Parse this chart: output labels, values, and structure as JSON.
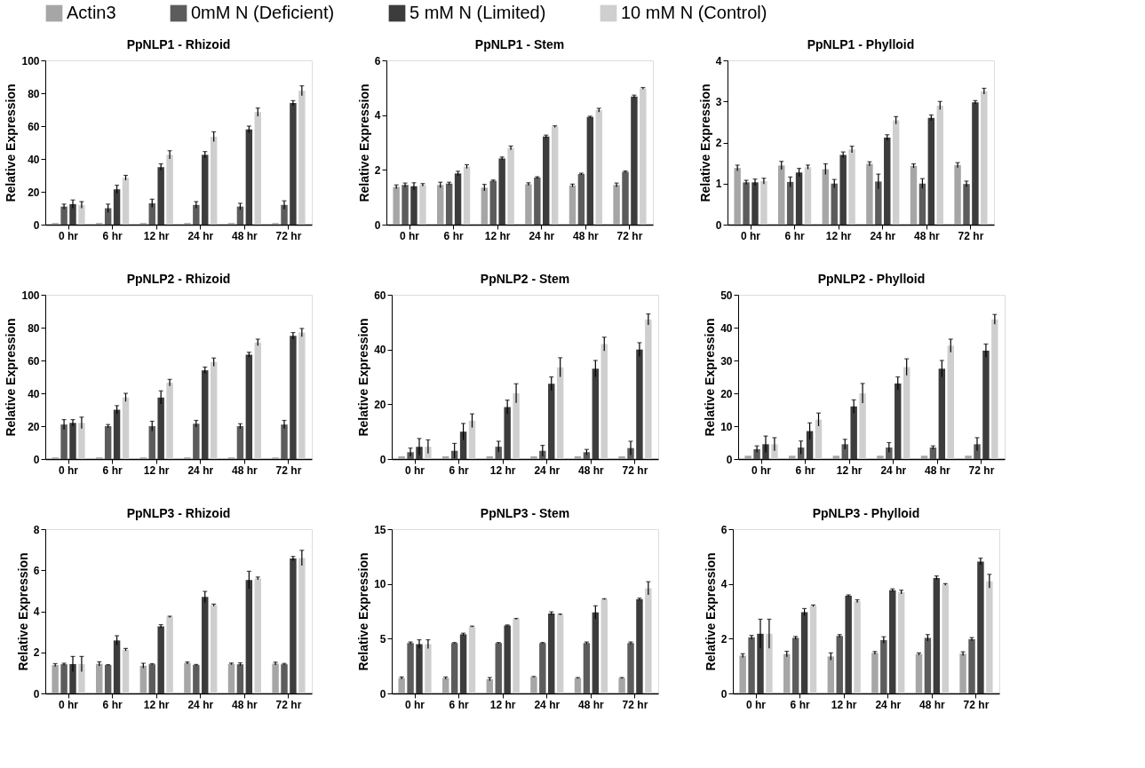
{
  "chart_data": [
    {
      "type": "bar",
      "title": "PpNLP1 - Rhizoid",
      "ylabel": "Relative Expression",
      "categories": [
        "0 hr",
        "6 hr",
        "12 hr",
        "24 hr",
        "48 hr",
        "72 hr"
      ],
      "ylim": [
        0,
        100
      ],
      "yticks": [
        0,
        20,
        40,
        60,
        80,
        100
      ],
      "grid": false,
      "legend": "top",
      "series": [
        {
          "name": "Actin3",
          "color": "#a6a6a6",
          "values": [
            1,
            1,
            1,
            1,
            1,
            1
          ]
        },
        {
          "name": "0mM N (Deficient)",
          "color": "#5c5c5c",
          "values": [
            11,
            10,
            13,
            12,
            11,
            12
          ],
          "errors": [
            1.5,
            2.5,
            2.5,
            2,
            2,
            2.5
          ]
        },
        {
          "name": "5 mM N (Limited)",
          "color": "#3c3c3c",
          "values": [
            12.5,
            21.5,
            35,
            42.5,
            58,
            74
          ],
          "errors": [
            2.5,
            2.5,
            2,
            2,
            2,
            1.5
          ]
        },
        {
          "name": "10 mM N (Control)",
          "color": "#cfcfcf",
          "values": [
            12,
            28.5,
            42.5,
            53.5,
            68.5,
            81.5
          ],
          "errors": [
            2,
            1.5,
            2.5,
            3,
            2.5,
            3
          ]
        }
      ]
    },
    {
      "type": "bar",
      "title": "PpNLP1 - Stem",
      "ylabel": "Relative Expression",
      "categories": [
        "0 hr",
        "6 hr",
        "12 hr",
        "24 hr",
        "48 hr",
        "72 hr"
      ],
      "ylim": [
        0,
        6
      ],
      "yticks": [
        0,
        2,
        4,
        6
      ],
      "grid": false,
      "legend": "top",
      "series": [
        {
          "name": "Actin3",
          "color": "#a6a6a6",
          "values": [
            1.38,
            1.45,
            1.35,
            1.48,
            1.43,
            1.45
          ],
          "errors": [
            0.07,
            0.1,
            0.12,
            0.05,
            0.05,
            0.07
          ]
        },
        {
          "name": "0mM N (Deficient)",
          "color": "#5c5c5c",
          "values": [
            1.45,
            1.5,
            1.6,
            1.72,
            1.85,
            1.93
          ],
          "errors": [
            0.07,
            0.05,
            0.03,
            0.03,
            0.03,
            0.03
          ]
        },
        {
          "name": "5 mM N (Limited)",
          "color": "#3c3c3c",
          "values": [
            1.4,
            1.87,
            2.42,
            3.22,
            3.93,
            4.68
          ],
          "errors": [
            0.13,
            0.08,
            0.05,
            0.05,
            0.03,
            0.05
          ]
        },
        {
          "name": "10 mM N (Control)",
          "color": "#cfcfcf",
          "values": [
            1.45,
            2.12,
            2.8,
            3.58,
            4.18,
            4.98
          ],
          "errors": [
            0.05,
            0.07,
            0.07,
            0.03,
            0.07,
            0.03
          ]
        }
      ]
    },
    {
      "type": "bar",
      "title": "PpNLP1 - Phylloid",
      "ylabel": "Relative Expression",
      "categories": [
        "0 hr",
        "6 hr",
        "12 hr",
        "24 hr",
        "48 hr",
        "72 hr"
      ],
      "ylim": [
        0,
        4
      ],
      "yticks": [
        0,
        1,
        2,
        3,
        4
      ],
      "grid": false,
      "legend": "top",
      "series": [
        {
          "name": "Actin3",
          "color": "#a6a6a6",
          "values": [
            1.38,
            1.44,
            1.35,
            1.48,
            1.43,
            1.45
          ],
          "errors": [
            0.07,
            0.1,
            0.13,
            0.05,
            0.05,
            0.06
          ]
        },
        {
          "name": "0mM N (Deficient)",
          "color": "#5c5c5c",
          "values": [
            1.03,
            1.04,
            1.0,
            1.05,
            1.0,
            0.99
          ],
          "errors": [
            0.05,
            0.12,
            0.1,
            0.18,
            0.12,
            0.07
          ]
        },
        {
          "name": "5 mM N (Limited)",
          "color": "#3c3c3c",
          "values": [
            1.03,
            1.27,
            1.7,
            2.12,
            2.6,
            2.98
          ],
          "errors": [
            0.08,
            0.1,
            0.07,
            0.07,
            0.07,
            0.04
          ]
        },
        {
          "name": "10 mM N (Control)",
          "color": "#cfcfcf",
          "values": [
            1.06,
            1.4,
            1.83,
            2.54,
            2.9,
            3.25
          ],
          "errors": [
            0.07,
            0.05,
            0.08,
            0.09,
            0.1,
            0.07
          ]
        }
      ]
    },
    {
      "type": "bar",
      "title": "PpNLP2 - Rhizoid",
      "ylabel": "Relative Expression",
      "categories": [
        "0 hr",
        "6 hr",
        "12 hr",
        "24 hr",
        "48 hr",
        "72 hr"
      ],
      "ylim": [
        0,
        100
      ],
      "yticks": [
        0,
        20,
        40,
        60,
        80,
        100
      ],
      "grid": false,
      "legend": "top",
      "series": [
        {
          "name": "Actin3",
          "color": "#a6a6a6",
          "values": [
            1,
            1,
            1,
            1,
            1,
            1
          ]
        },
        {
          "name": "0mM N (Deficient)",
          "color": "#5c5c5c",
          "values": [
            21,
            20,
            20,
            21.5,
            20,
            21
          ],
          "errors": [
            3,
            1,
            3,
            2,
            1.5,
            2.5
          ]
        },
        {
          "name": "5 mM N (Limited)",
          "color": "#3c3c3c",
          "values": [
            22,
            30,
            37.5,
            54,
            63.5,
            75
          ],
          "errors": [
            2,
            2.5,
            4,
            2,
            1.5,
            2
          ]
        },
        {
          "name": "10 mM N (Control)",
          "color": "#cfcfcf",
          "values": [
            22,
            37.5,
            46.5,
            59,
            71,
            77
          ],
          "errors": [
            3.5,
            2.5,
            2,
            2.5,
            2,
            2.5
          ]
        }
      ]
    },
    {
      "type": "bar",
      "title": "PpNLP2 - Stem",
      "ylabel": "Relative Expression",
      "categories": [
        "0 hr",
        "6 hr",
        "12 hr",
        "24 hr",
        "48 hr",
        "72 hr"
      ],
      "ylim": [
        0,
        60
      ],
      "yticks": [
        0,
        20,
        40,
        60
      ],
      "grid": false,
      "legend": "top",
      "series": [
        {
          "name": "Actin3",
          "color": "#a6a6a6",
          "values": [
            1,
            1,
            1,
            1,
            1,
            1
          ]
        },
        {
          "name": "0mM N (Deficient)",
          "color": "#5c5c5c",
          "values": [
            2.5,
            3,
            4.5,
            3,
            2.5,
            4
          ],
          "errors": [
            1.5,
            2.7,
            2,
            2,
            1,
            2.5
          ]
        },
        {
          "name": "5 mM N (Limited)",
          "color": "#3c3c3c",
          "values": [
            4.5,
            10,
            19,
            27.5,
            33,
            40
          ],
          "errors": [
            3,
            3,
            2.5,
            2.5,
            3,
            2.5
          ]
        },
        {
          "name": "10 mM N (Control)",
          "color": "#cfcfcf",
          "values": [
            4.5,
            14,
            24,
            33.5,
            42,
            51
          ],
          "errors": [
            2.5,
            2.5,
            3.5,
            3.5,
            2.5,
            2
          ]
        }
      ]
    },
    {
      "type": "bar",
      "title": "PpNLP2 - Phylloid",
      "ylabel": "Relative Expression",
      "categories": [
        "0 hr",
        "6 hr",
        "12 hr",
        "24 hr",
        "48 hr",
        "72 hr"
      ],
      "ylim": [
        0,
        50
      ],
      "yticks": [
        0,
        10,
        20,
        30,
        40,
        50
      ],
      "grid": false,
      "legend": "top",
      "series": [
        {
          "name": "Actin3",
          "color": "#a6a6a6",
          "values": [
            1,
            1,
            1,
            1,
            1,
            1
          ]
        },
        {
          "name": "0mM N (Deficient)",
          "color": "#5c5c5c",
          "values": [
            3,
            3.5,
            4.5,
            3.5,
            3.5,
            4.5
          ],
          "errors": [
            1,
            2,
            1.5,
            1.5,
            0.5,
            2
          ]
        },
        {
          "name": "5 mM N (Limited)",
          "color": "#3c3c3c",
          "values": [
            4.5,
            8.5,
            16,
            23,
            27.5,
            33
          ],
          "errors": [
            2.5,
            2.5,
            2,
            2,
            2.5,
            2
          ]
        },
        {
          "name": "10 mM N (Control)",
          "color": "#cfcfcf",
          "values": [
            4.5,
            12,
            20,
            28,
            34.5,
            42.5
          ],
          "errors": [
            2,
            2,
            3,
            2.5,
            2,
            1.5
          ]
        }
      ]
    },
    {
      "type": "bar",
      "title": "PpNLP3 - Rhizoid",
      "ylabel": "Relative Expression",
      "categories": [
        "0 hr",
        "6 hr",
        "12 hr",
        "24 hr",
        "48 hr",
        "72 hr"
      ],
      "ylim": [
        0,
        8
      ],
      "yticks": [
        0,
        2,
        4,
        6,
        8
      ],
      "grid": false,
      "legend": "top",
      "series": [
        {
          "name": "Actin3",
          "color": "#a6a6a6",
          "values": [
            1.38,
            1.44,
            1.35,
            1.48,
            1.44,
            1.45
          ],
          "errors": [
            0.07,
            0.1,
            0.12,
            0.05,
            0.04,
            0.07
          ]
        },
        {
          "name": "0mM N (Deficient)",
          "color": "#5c5c5c",
          "values": [
            1.42,
            1.38,
            1.42,
            1.38,
            1.42,
            1.42
          ],
          "errors": [
            0.05,
            0.02,
            0.03,
            0.03,
            0.07,
            0.04
          ]
        },
        {
          "name": "5 mM N (Limited)",
          "color": "#3c3c3c",
          "values": [
            1.43,
            2.58,
            3.27,
            4.7,
            5.52,
            6.57
          ],
          "errors": [
            0.37,
            0.23,
            0.08,
            0.27,
            0.43,
            0.1
          ]
        },
        {
          "name": "10 mM N (Control)",
          "color": "#cfcfcf",
          "values": [
            1.43,
            2.13,
            3.73,
            4.3,
            5.6,
            6.6
          ],
          "errors": [
            0.37,
            0.06,
            0.03,
            0.05,
            0.07,
            0.37
          ]
        }
      ]
    },
    {
      "type": "bar",
      "title": "PpNLP3 - Stem",
      "ylabel": "Relative Expression",
      "categories": [
        "0 hr",
        "6 hr",
        "12 hr",
        "24 hr",
        "48 hr",
        "72 hr"
      ],
      "ylim": [
        0,
        15
      ],
      "yticks": [
        0,
        5,
        10,
        15
      ],
      "grid": false,
      "legend": "top",
      "series": [
        {
          "name": "Actin3",
          "color": "#a6a6a6",
          "values": [
            1.4,
            1.4,
            1.3,
            1.5,
            1.4,
            1.4
          ],
          "errors": [
            0.1,
            0.1,
            0.15,
            0.05,
            0.05,
            0.05
          ]
        },
        {
          "name": "0mM N (Deficient)",
          "color": "#5c5c5c",
          "values": [
            4.6,
            4.6,
            4.6,
            4.6,
            4.6,
            4.6
          ],
          "errors": [
            0.1,
            0.05,
            0.05,
            0.05,
            0.1,
            0.1
          ]
        },
        {
          "name": "5 mM N (Limited)",
          "color": "#3c3c3c",
          "values": [
            4.5,
            5.4,
            6.2,
            7.3,
            7.4,
            8.6
          ],
          "errors": [
            0.4,
            0.1,
            0.05,
            0.15,
            0.6,
            0.1
          ]
        },
        {
          "name": "10 mM N (Control)",
          "color": "#cfcfcf",
          "values": [
            4.5,
            6.1,
            6.8,
            7.2,
            8.6,
            9.6
          ],
          "errors": [
            0.4,
            0.05,
            0.05,
            0.05,
            0.05,
            0.6
          ]
        }
      ]
    },
    {
      "type": "bar",
      "title": "PpNLP3 - Phylloid",
      "ylabel": "Relative Expression",
      "categories": [
        "0 hr",
        "6 hr",
        "12 hr",
        "24 hr",
        "48 hr",
        "72 hr"
      ],
      "ylim": [
        0,
        6
      ],
      "yticks": [
        0,
        2,
        4,
        6
      ],
      "grid": false,
      "legend": "top",
      "series": [
        {
          "name": "Actin3",
          "color": "#a6a6a6",
          "values": [
            1.38,
            1.44,
            1.35,
            1.48,
            1.44,
            1.45
          ],
          "errors": [
            0.07,
            0.1,
            0.13,
            0.05,
            0.04,
            0.07
          ]
        },
        {
          "name": "0mM N (Deficient)",
          "color": "#5c5c5c",
          "values": [
            2.05,
            2.03,
            2.1,
            1.95,
            2.03,
            1.98
          ],
          "errors": [
            0.07,
            0.05,
            0.05,
            0.12,
            0.12,
            0.06
          ]
        },
        {
          "name": "5 mM N (Limited)",
          "color": "#3c3c3c",
          "values": [
            2.18,
            2.97,
            3.57,
            3.77,
            4.22,
            4.82
          ],
          "errors": [
            0.53,
            0.13,
            0.03,
            0.05,
            0.07,
            0.12
          ]
        },
        {
          "name": "10 mM N (Control)",
          "color": "#cfcfcf",
          "values": [
            2.18,
            3.2,
            3.37,
            3.7,
            3.98,
            4.1
          ],
          "errors": [
            0.53,
            0.03,
            0.05,
            0.07,
            0.03,
            0.25
          ]
        }
      ]
    }
  ]
}
